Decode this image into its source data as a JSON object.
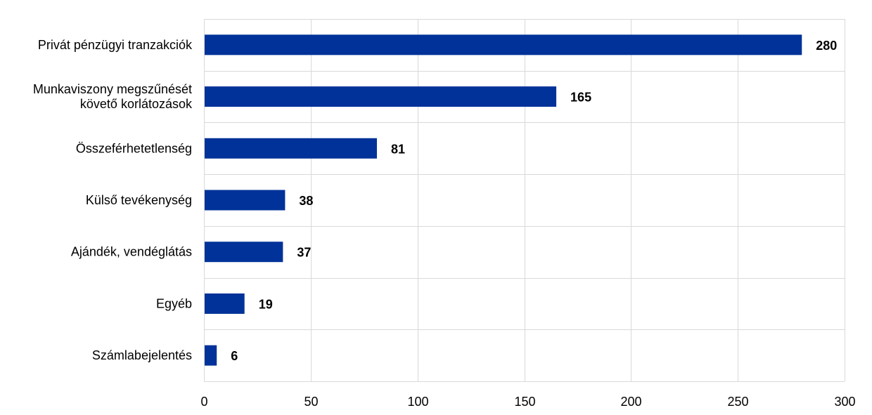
{
  "chart_data": {
    "type": "bar",
    "orientation": "horizontal",
    "title": "",
    "xlabel": "",
    "ylabel": "",
    "categories": [
      [
        "Privát pénzügyi tranzakciók"
      ],
      [
        "Munkaviszony megszűnését",
        "követő korlátozások"
      ],
      [
        "Összeférhetetlenség"
      ],
      [
        "Külső tevékenység"
      ],
      [
        "Ajándék, vendéglátás"
      ],
      [
        "Egyéb"
      ],
      [
        "Számlabejelentés"
      ]
    ],
    "values": [
      280,
      165,
      81,
      38,
      37,
      19,
      6
    ],
    "value_labels": [
      "280",
      "165",
      "81",
      "38",
      "37",
      "19",
      "6"
    ],
    "xlim": [
      0,
      300
    ],
    "xticks": [
      0,
      50,
      100,
      150,
      200,
      250,
      300
    ],
    "xtick_labels": [
      "0",
      "50",
      "100",
      "150",
      "200",
      "250",
      "300"
    ],
    "grid": true,
    "legend": "none",
    "bar_color": "#003299",
    "grid_color": "#d9d9d9"
  }
}
